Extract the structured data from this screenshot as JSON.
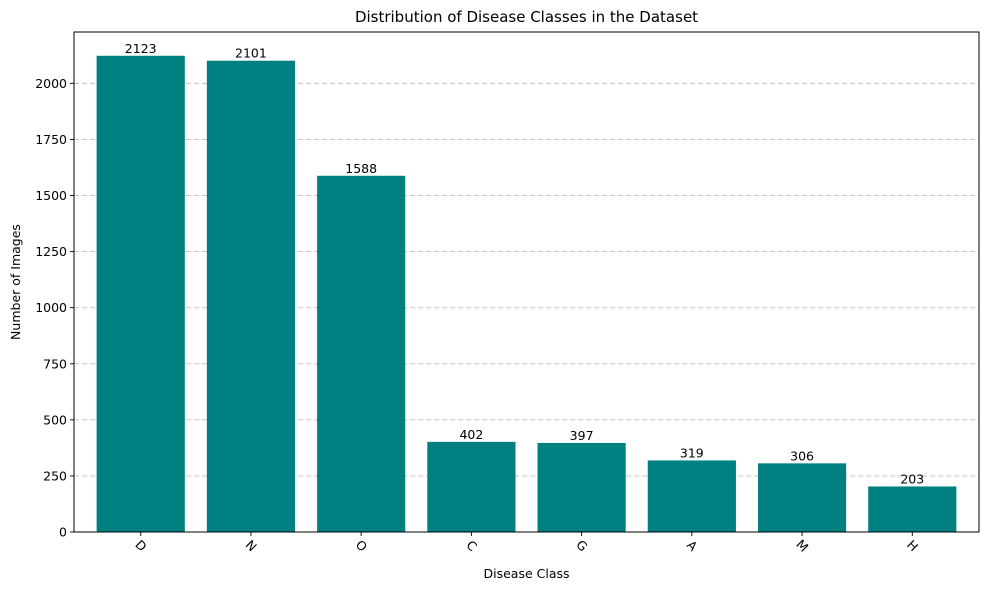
{
  "chart_data": {
    "type": "bar",
    "title": "Distribution of Disease Classes in the Dataset",
    "xlabel": "Disease Class",
    "ylabel": "Number of Images",
    "categories": [
      "D",
      "N",
      "O",
      "C",
      "G",
      "A",
      "M",
      "H"
    ],
    "values": [
      2123,
      2101,
      1588,
      402,
      397,
      319,
      306,
      203
    ],
    "data_labels": [
      "2123",
      "2101",
      "1588",
      "402",
      "397",
      "319",
      "306",
      "203"
    ],
    "ylim": [
      0,
      2229
    ],
    "y_ticks": [
      0,
      250,
      500,
      750,
      1000,
      1250,
      1500,
      1750,
      2000
    ],
    "y_tick_labels": [
      "0",
      "250",
      "500",
      "750",
      "1000",
      "1250",
      "1500",
      "1750",
      "2000"
    ],
    "x_tick_rotation_deg": 45,
    "grid": {
      "y": true,
      "x": false,
      "style": "dashed"
    },
    "bar_color": "#008080",
    "legend": "none"
  }
}
